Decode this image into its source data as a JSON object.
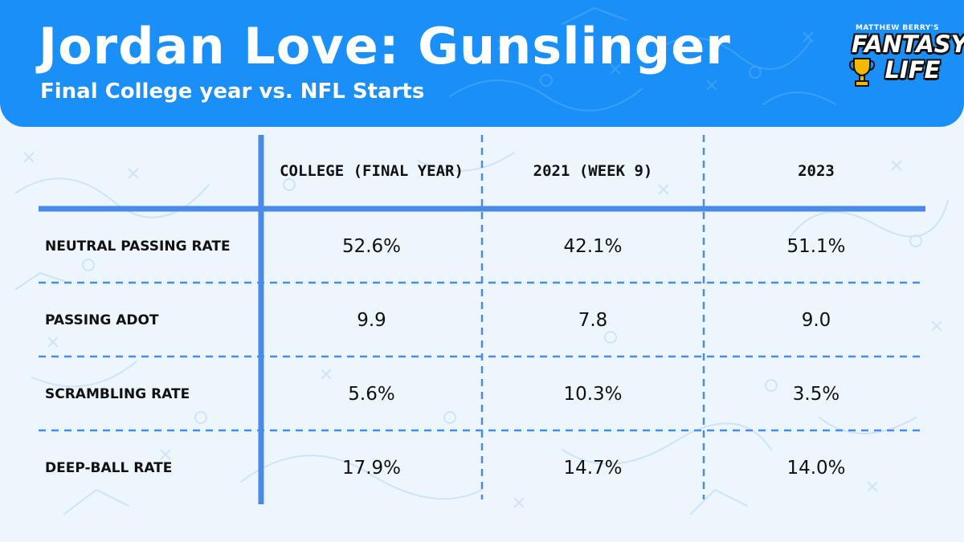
{
  "header": {
    "title": "Jordan Love: Gunslinger",
    "subtitle": "Final College year vs. NFL Starts",
    "background_color": "#1a8ff7"
  },
  "logo": {
    "top_text": "MATTHEW BERRY'S",
    "mid_text": "FANTASY",
    "bottom_text": "LIFE",
    "icon": "trophy-icon"
  },
  "table": {
    "columns": [
      "COLLEGE (FINAL YEAR)",
      "2021 (WEEK 9)",
      "2023"
    ],
    "rows": [
      {
        "label": "NEUTRAL PASSING RATE",
        "values": [
          "52.6%",
          "42.1%",
          "51.1%"
        ]
      },
      {
        "label": "PASSING ADOT",
        "values": [
          "9.9",
          "7.8",
          "9.0"
        ]
      },
      {
        "label": "SCRAMBLING RATE",
        "values": [
          "5.6%",
          "10.3%",
          "3.5%"
        ]
      },
      {
        "label": "DEEP-BALL RATE",
        "values": [
          "17.9%",
          "14.7%",
          "14.0%"
        ]
      }
    ],
    "line_color": "#4a8be8"
  }
}
